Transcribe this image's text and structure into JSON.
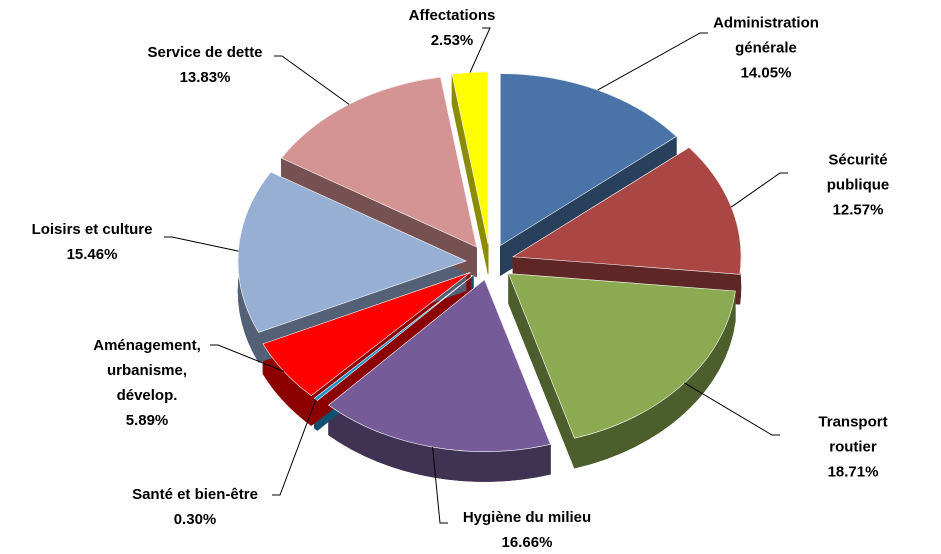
{
  "chart_data": {
    "type": "pie",
    "categories": [
      "Administration\ngénérale",
      "Sécurité publique",
      "Transport routier",
      "Hygiène du milieu",
      "Santé et bien-être",
      "Aménagement,\nurbanisme,\ndévelop.",
      "Loisirs et culture",
      "Service de dette",
      "Affectations"
    ],
    "values": [
      14.05,
      12.57,
      18.71,
      16.66,
      0.3,
      5.89,
      15.46,
      13.83,
      2.53
    ],
    "value_labels": [
      "14.05%",
      "12.57%",
      "18.71%",
      "16.66%",
      "0.30%",
      "5.89%",
      "15.46%",
      "13.83%",
      "2.53%"
    ],
    "colors": [
      "#4a74a8",
      "#aa4644",
      "#8caa52",
      "#755b97",
      "#1f93c9",
      "#ff0000",
      "#98afd4",
      "#d49494",
      "#ffff00"
    ]
  }
}
